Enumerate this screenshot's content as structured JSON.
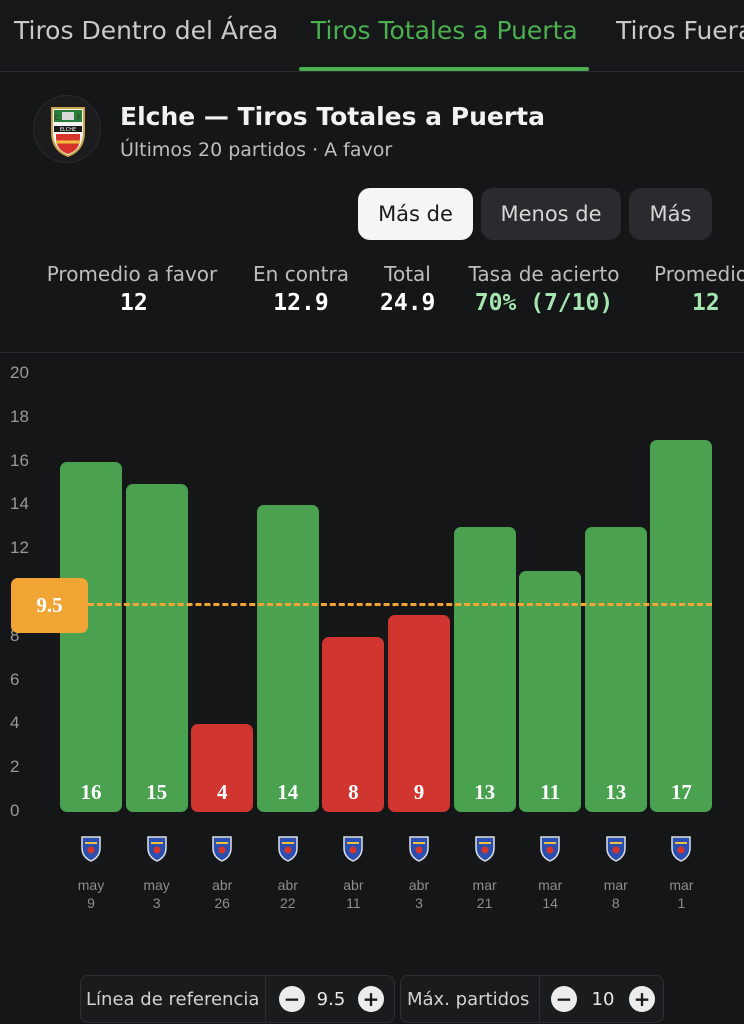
{
  "tabs": [
    {
      "label": "Tiros Dentro del Área",
      "active": false
    },
    {
      "label": "Tiros Totales a Puerta",
      "active": true
    },
    {
      "label": "Tiros Fuera",
      "active": false
    }
  ],
  "header": {
    "logo_icon": "elche-crest-icon",
    "title": "Elche — Tiros Totales a Puerta",
    "subtitle": "Últimos 20 partidos · A favor"
  },
  "segments": [
    {
      "label": "Más de",
      "active": true
    },
    {
      "label": "Menos de",
      "active": false
    },
    {
      "label": "Más",
      "active": false
    }
  ],
  "stats": [
    {
      "label": "Promedio a favor",
      "value": "12",
      "highlight": false
    },
    {
      "label": "En contra",
      "value": "12.9",
      "highlight": false
    },
    {
      "label": "Total",
      "value": "24.9",
      "highlight": false
    },
    {
      "label": "Tasa de acierto",
      "value": "70% (7/10)",
      "highlight": true
    },
    {
      "label": "Promedio",
      "value": "12",
      "highlight": true
    }
  ],
  "chart_data": {
    "type": "bar",
    "ylim": [
      0,
      20
    ],
    "y_ticks": [
      "20",
      "18",
      "16",
      "14",
      "12",
      "10",
      "8",
      "6",
      "4",
      "2",
      "0"
    ],
    "reference_line": 9.5,
    "reference_label": "9.5",
    "colors": {
      "over": "#4aa150",
      "under": "#d0362f",
      "reference": "#f0a535"
    },
    "values": [
      16,
      15,
      4,
      14,
      8,
      9,
      13,
      11,
      13,
      17
    ],
    "value_labels": [
      "16",
      "15",
      "4",
      "14",
      "8",
      "9",
      "13",
      "11",
      "13",
      "17"
    ],
    "categories": [
      {
        "month": "may",
        "day": "9",
        "crest": "alaves-crest-icon"
      },
      {
        "month": "may",
        "day": "3",
        "crest": "celta-crest-icon"
      },
      {
        "month": "abr",
        "day": "26",
        "crest": "oviedo-crest-icon"
      },
      {
        "month": "abr",
        "day": "22",
        "crest": "atletico-crest-icon"
      },
      {
        "month": "abr",
        "day": "11",
        "crest": "valencia-crest-icon"
      },
      {
        "month": "abr",
        "day": "3",
        "crest": "rayo-crest-icon"
      },
      {
        "month": "mar",
        "day": "21",
        "crest": "mallorca-crest-icon"
      },
      {
        "month": "mar",
        "day": "14",
        "crest": "real-madrid-crest-icon"
      },
      {
        "month": "mar",
        "day": "8",
        "crest": "villarreal-crest-icon"
      },
      {
        "month": "mar",
        "day": "1",
        "crest": "espanyol-crest-icon"
      }
    ]
  },
  "controls": {
    "reference": {
      "label": "Línea de referencia",
      "value": "9.5",
      "minus": "−",
      "plus": "+"
    },
    "matches": {
      "label": "Máx. partidos",
      "value": "10",
      "minus": "−",
      "plus": "+"
    }
  }
}
